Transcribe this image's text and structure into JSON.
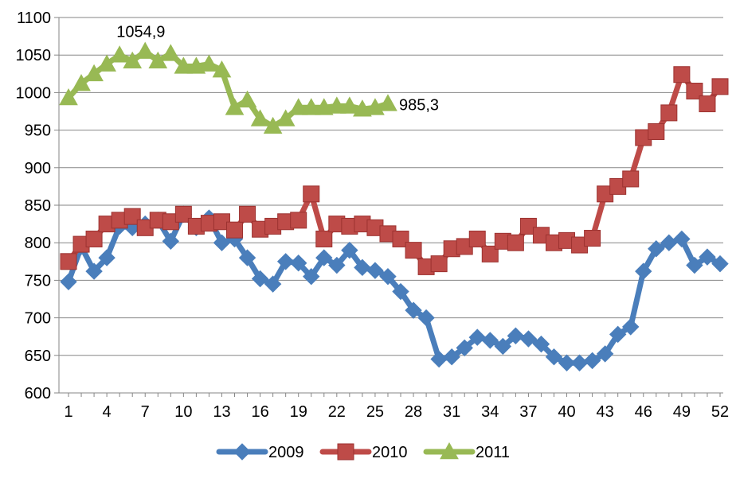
{
  "chart_data": {
    "type": "line",
    "title": "",
    "xlabel": "",
    "ylabel": "",
    "ylim": [
      600,
      1100
    ],
    "xlim": [
      1,
      52
    ],
    "y_ticks": [
      600,
      650,
      700,
      750,
      800,
      850,
      900,
      950,
      1000,
      1050,
      1100
    ],
    "x_tick_labels": [
      1,
      4,
      7,
      10,
      13,
      16,
      19,
      22,
      25,
      28,
      31,
      34,
      37,
      40,
      43,
      46,
      49,
      52
    ],
    "grid": "horizontal",
    "legend_position": "bottom",
    "series": [
      {
        "name": "2009",
        "color": "#4a7ebb",
        "marker": "diamond",
        "x": [
          1,
          2,
          3,
          4,
          5,
          6,
          7,
          8,
          9,
          10,
          11,
          12,
          13,
          14,
          15,
          16,
          17,
          18,
          19,
          20,
          21,
          22,
          23,
          24,
          25,
          26,
          27,
          28,
          29,
          30,
          31,
          32,
          33,
          34,
          35,
          36,
          37,
          38,
          39,
          40,
          41,
          42,
          43,
          44,
          45,
          46,
          47,
          48,
          49,
          50,
          51,
          52
        ],
        "values": [
          748,
          795,
          762,
          780,
          822,
          820,
          825,
          830,
          802,
          838,
          820,
          833,
          800,
          805,
          780,
          752,
          745,
          775,
          773,
          755,
          780,
          770,
          790,
          767,
          763,
          755,
          735,
          710,
          700,
          645,
          648,
          660,
          674,
          670,
          662,
          676,
          672,
          665,
          648,
          640,
          640,
          643,
          652,
          678,
          688,
          762,
          792,
          800,
          805,
          770,
          781,
          772
        ]
      },
      {
        "name": "2010",
        "color": "#be4b48",
        "marker": "square",
        "x": [
          1,
          2,
          3,
          4,
          5,
          6,
          7,
          8,
          9,
          10,
          11,
          12,
          13,
          14,
          15,
          16,
          17,
          18,
          19,
          20,
          21,
          22,
          23,
          24,
          25,
          26,
          27,
          28,
          29,
          30,
          31,
          32,
          33,
          34,
          35,
          36,
          37,
          38,
          39,
          40,
          41,
          42,
          43,
          44,
          45,
          46,
          47,
          48,
          49,
          50,
          51,
          52
        ],
        "values": [
          775,
          798,
          805,
          825,
          830,
          835,
          820,
          830,
          828,
          838,
          822,
          826,
          828,
          817,
          838,
          818,
          822,
          828,
          830,
          865,
          805,
          825,
          822,
          825,
          820,
          812,
          805,
          790,
          768,
          772,
          792,
          795,
          805,
          785,
          802,
          800,
          822,
          810,
          800,
          803,
          797,
          806,
          865,
          875,
          885,
          940,
          948,
          973,
          1024,
          1002,
          985,
          1008
        ]
      },
      {
        "name": "2011",
        "color": "#98b954",
        "marker": "triangle",
        "x": [
          1,
          2,
          3,
          4,
          5,
          6,
          7,
          8,
          9,
          10,
          11,
          12,
          13,
          14,
          15,
          16,
          17,
          18,
          19,
          20,
          21,
          22,
          23,
          24,
          25,
          26
        ],
        "values": [
          993,
          1012,
          1025,
          1038,
          1050,
          1042,
          1054.9,
          1042,
          1052,
          1035,
          1035,
          1038,
          1030,
          980,
          990,
          965,
          955,
          965,
          980,
          980,
          980,
          982,
          982,
          978,
          980,
          985.3
        ]
      }
    ],
    "annotations": [
      {
        "text": "1054,9",
        "series": "2011",
        "x": 7
      },
      {
        "text": "985,3",
        "series": "2011",
        "x": 26
      }
    ]
  }
}
